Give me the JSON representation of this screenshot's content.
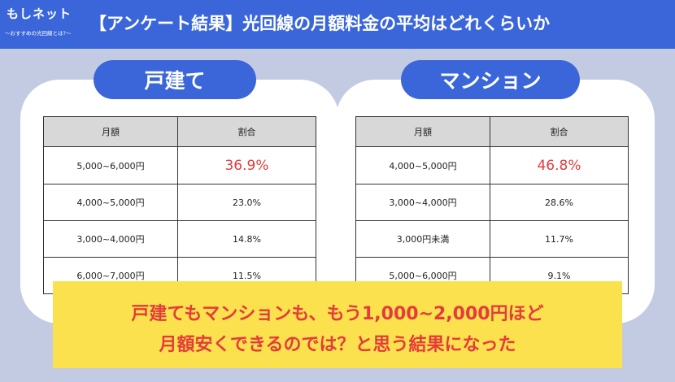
{
  "header": {
    "logo_main": "もしネット",
    "logo_sub": "〜おすすめの光回線とは?〜",
    "title": "【アンケート結果】光回線の月額料金の平均はどれくらいか"
  },
  "sections": [
    {
      "label": "戸建て",
      "columns": [
        "月額",
        "割合"
      ],
      "rows": [
        {
          "range": "5,000~6,000円",
          "share": "36.9%"
        },
        {
          "range": "4,000~5,000円",
          "share": "23.0%"
        },
        {
          "range": "3,000~4,000円",
          "share": "14.8%"
        },
        {
          "range": "6,000~7,000円",
          "share": "11.5%"
        }
      ]
    },
    {
      "label": "マンション",
      "columns": [
        "月額",
        "割合"
      ],
      "rows": [
        {
          "range": "4,000~5,000円",
          "share": "46.8%"
        },
        {
          "range": "3,000~4,000円",
          "share": "28.6%"
        },
        {
          "range": "3,000円未満",
          "share": "11.7%"
        },
        {
          "range": "5,000~6,000円",
          "share": "9.1%"
        }
      ]
    }
  ],
  "conclusion": {
    "line1": "戸建てもマンションも、もう1,000~2,000円ほど",
    "line2": "月額安くできるのでは？と思う結果になった"
  },
  "colors": {
    "header": "#3a66d9",
    "background": "#c3cbe3",
    "highlight": "#e53b3b",
    "callout": "#fce14e"
  }
}
